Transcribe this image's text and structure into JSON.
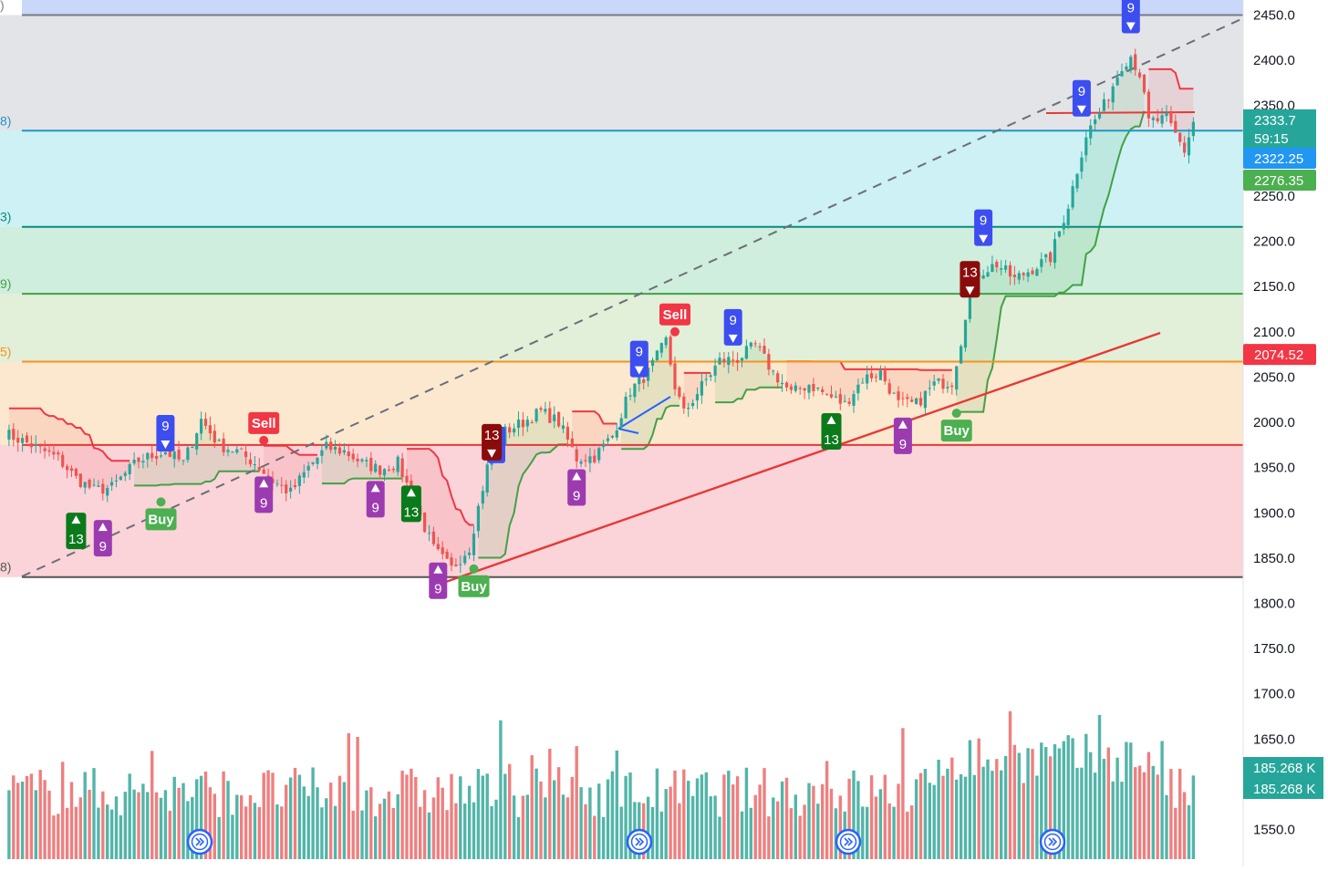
{
  "chart_data": {
    "type": "candlestick",
    "title": "",
    "y_axis": {
      "ticks": [
        2450.0,
        2400.0,
        2350.0,
        2300.0,
        2250.0,
        2200.0,
        2150.0,
        2100.0,
        2050.0,
        2000.0,
        1950.0,
        1900.0,
        1850.0,
        1800.0,
        1750.0,
        1700.0,
        1650.0,
        1600.0,
        1550.0
      ],
      "tick_labels": [
        "2450.0",
        "2400.0",
        "2350.0",
        "",
        "2250.0",
        "2200.0",
        "2150.0",
        "2100.0",
        "2050.0",
        "2000.0",
        "1950.0",
        "1900.0",
        "1850.0",
        "1800.0",
        "1750.0",
        "1700.0",
        "1650.0",
        "",
        "1550.0"
      ],
      "range": [
        1530,
        2465
      ]
    },
    "fib_levels": [
      {
        "price": 2450.0,
        "band_color": "#dcdde0",
        "line_color": "#787b86",
        "label": ")"
      },
      {
        "price": 2322.25,
        "band_color": "#d4dfe0",
        "line_color": "#2196c8",
        "label": "8)"
      },
      {
        "price": 2216.0,
        "band_color": "#c6f0f2",
        "line_color": "#0d8a7c",
        "label": "3)"
      },
      {
        "price": 2142.0,
        "band_color": "#cfeedd",
        "line_color": "#43a047",
        "label": "9)"
      },
      {
        "price": 2067.0,
        "band_color": "#e2efd9",
        "line_color": "#f7931a",
        "label": "5)"
      },
      {
        "price": 1975.0,
        "band_color": "#fbe8cf",
        "line_color": "#e53935",
        "label": ""
      },
      {
        "price": 1829.0,
        "band_color": "#fad4d8",
        "line_color": "#555555",
        "label": "8)"
      }
    ],
    "price_tags": [
      {
        "label": "2333.7",
        "sub": "59:15",
        "value": 2333.7,
        "color": "#26a69a"
      },
      {
        "label": "2322.25",
        "value": 2322.25,
        "color": "#2196f3"
      },
      {
        "label": "2276.35",
        "value": 2276.35,
        "color": "#4caf50"
      },
      {
        "label": "2074.52",
        "value": 2074.52,
        "color": "#f23645"
      }
    ],
    "volume_tags": [
      "185.268 K",
      "185.268 K"
    ],
    "signals": [
      {
        "text": "Buy",
        "type": "buy",
        "bar": 35,
        "price": 1912
      },
      {
        "text": "Sell",
        "type": "sell",
        "bar": 58,
        "price": 1980
      },
      {
        "text": "Buy",
        "type": "buy",
        "bar": 105,
        "price": 1838
      },
      {
        "text": "Sell",
        "type": "sell",
        "bar": 150,
        "price": 2100
      },
      {
        "text": "Buy",
        "type": "buy",
        "bar": 213,
        "price": 2010
      }
    ],
    "td_counts": [
      {
        "text": "9",
        "dir": "down",
        "bar": 36,
        "price": 1988,
        "color": "#3d4ef0"
      },
      {
        "text": "13",
        "dir": "up",
        "bar": 16,
        "price": 1880,
        "color": "#0b7a1b"
      },
      {
        "text": "9",
        "dir": "up",
        "bar": 22,
        "price": 1872,
        "color": "#9c3bb0"
      },
      {
        "text": "9",
        "dir": "up",
        "bar": 58,
        "price": 1920,
        "color": "#9c3bb0"
      },
      {
        "text": "9",
        "dir": "up",
        "bar": 83,
        "price": 1915,
        "color": "#9c3bb0"
      },
      {
        "text": "13",
        "dir": "up",
        "bar": 91,
        "price": 1910,
        "color": "#0b7a1b"
      },
      {
        "text": "9",
        "dir": "up",
        "bar": 97,
        "price": 1825,
        "color": "#9c3bb0"
      },
      {
        "text": "9",
        "dir": "down",
        "bar": 110,
        "price": 1975,
        "color": "#3d4ef0"
      },
      {
        "text": "13",
        "dir": "down",
        "bar": 109,
        "price": 1978,
        "color": "#8b0b0b"
      },
      {
        "text": "9",
        "dir": "up",
        "bar": 128,
        "price": 1928,
        "color": "#9c3bb0"
      },
      {
        "text": "9",
        "dir": "down",
        "bar": 142,
        "price": 2070,
        "color": "#3d4ef0"
      },
      {
        "text": "9",
        "dir": "down",
        "bar": 163,
        "price": 2105,
        "color": "#3d4ef0"
      },
      {
        "text": "13",
        "dir": "up",
        "bar": 185,
        "price": 1990,
        "color": "#0b7a1b"
      },
      {
        "text": "9",
        "dir": "up",
        "bar": 201,
        "price": 1985,
        "color": "#9c3bb0"
      },
      {
        "text": "13",
        "dir": "down",
        "bar": 216,
        "price": 2158,
        "color": "#8b0b0b"
      },
      {
        "text": "9",
        "dir": "down",
        "bar": 219,
        "price": 2215,
        "color": "#3d4ef0"
      },
      {
        "text": "9",
        "dir": "down",
        "bar": 241,
        "price": 2358,
        "color": "#3d4ef0"
      },
      {
        "text": "9",
        "dir": "down",
        "bar": 252,
        "price": 2450,
        "color": "#3d4ef0"
      }
    ],
    "series": [
      {
        "name": "",
        "points": [
          [
            0,
            1988
          ],
          [
            6,
            1975
          ],
          [
            12,
            1960
          ],
          [
            16,
            1938
          ],
          [
            20,
            1925
          ],
          [
            24,
            1928
          ],
          [
            30,
            1958
          ],
          [
            36,
            1968
          ],
          [
            40,
            1955
          ],
          [
            44,
            2003
          ],
          [
            48,
            1975
          ],
          [
            52,
            1968
          ],
          [
            56,
            1955
          ],
          [
            60,
            1935
          ],
          [
            64,
            1922
          ],
          [
            68,
            1950
          ],
          [
            72,
            1972
          ],
          [
            76,
            1968
          ],
          [
            80,
            1955
          ],
          [
            84,
            1948
          ],
          [
            88,
            1955
          ],
          [
            92,
            1908
          ],
          [
            96,
            1860
          ],
          [
            100,
            1838
          ],
          [
            104,
            1862
          ],
          [
            108,
            1950
          ],
          [
            112,
            1990
          ],
          [
            116,
            2000
          ],
          [
            120,
            2012
          ],
          [
            124,
            2000
          ],
          [
            128,
            1960
          ],
          [
            132,
            1962
          ],
          [
            136,
            1985
          ],
          [
            140,
            2035
          ],
          [
            144,
            2055
          ],
          [
            148,
            2090
          ],
          [
            150,
            2040
          ],
          [
            152,
            2010
          ],
          [
            156,
            2040
          ],
          [
            160,
            2068
          ],
          [
            164,
            2070
          ],
          [
            168,
            2085
          ],
          [
            172,
            2055
          ],
          [
            176,
            2032
          ],
          [
            180,
            2042
          ],
          [
            184,
            2030
          ],
          [
            188,
            2020
          ],
          [
            192,
            2048
          ],
          [
            196,
            2055
          ],
          [
            200,
            2020
          ],
          [
            204,
            2020
          ],
          [
            208,
            2042
          ],
          [
            212,
            2045
          ],
          [
            214,
            2090
          ],
          [
            216,
            2150
          ],
          [
            218,
            2165
          ],
          [
            222,
            2175
          ],
          [
            226,
            2158
          ],
          [
            230,
            2170
          ],
          [
            234,
            2182
          ],
          [
            238,
            2240
          ],
          [
            242,
            2318
          ],
          [
            246,
            2350
          ],
          [
            250,
            2395
          ],
          [
            252,
            2405
          ],
          [
            254,
            2385
          ],
          [
            256,
            2332
          ],
          [
            260,
            2335
          ],
          [
            264,
            2300
          ],
          [
            266,
            2332
          ]
        ]
      }
    ],
    "volume_range": [
      0,
      260
    ]
  }
}
